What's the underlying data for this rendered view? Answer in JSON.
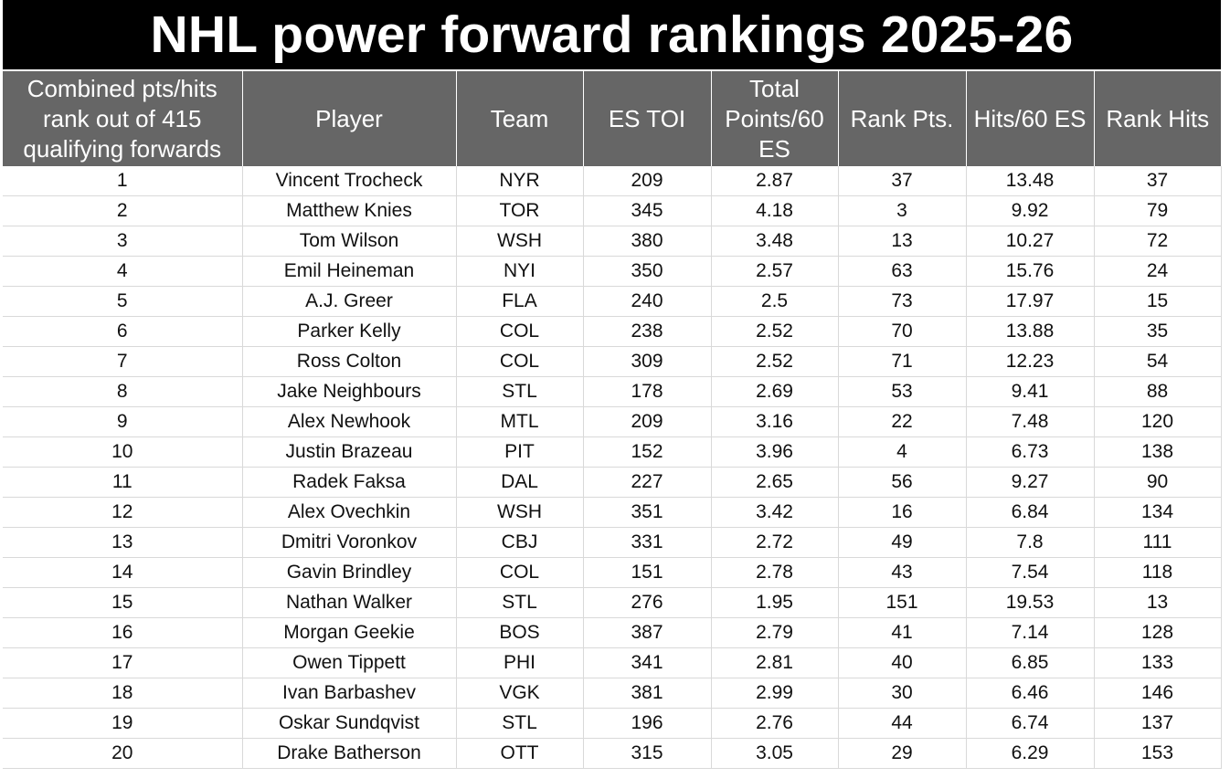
{
  "title": "NHL power forward rankings 2025-26",
  "chart_data": {
    "type": "table",
    "title": "NHL power forward rankings 2025-26",
    "columns": [
      "Combined pts/hits rank out of 415 qualifying forwards",
      "Player",
      "Team",
      "ES TOI",
      "Total Points/60 ES",
      "Rank Pts.",
      "Hits/60 ES",
      "Rank Hits"
    ],
    "rows": [
      [
        "1",
        "Vincent Trocheck",
        "NYR",
        "209",
        "2.87",
        "37",
        "13.48",
        "37"
      ],
      [
        "2",
        "Matthew Knies",
        "TOR",
        "345",
        "4.18",
        "3",
        "9.92",
        "79"
      ],
      [
        "3",
        "Tom Wilson",
        "WSH",
        "380",
        "3.48",
        "13",
        "10.27",
        "72"
      ],
      [
        "4",
        "Emil Heineman",
        "NYI",
        "350",
        "2.57",
        "63",
        "15.76",
        "24"
      ],
      [
        "5",
        "A.J. Greer",
        "FLA",
        "240",
        "2.5",
        "73",
        "17.97",
        "15"
      ],
      [
        "6",
        "Parker Kelly",
        "COL",
        "238",
        "2.52",
        "70",
        "13.88",
        "35"
      ],
      [
        "7",
        "Ross Colton",
        "COL",
        "309",
        "2.52",
        "71",
        "12.23",
        "54"
      ],
      [
        "8",
        "Jake Neighbours",
        "STL",
        "178",
        "2.69",
        "53",
        "9.41",
        "88"
      ],
      [
        "9",
        "Alex Newhook",
        "MTL",
        "209",
        "3.16",
        "22",
        "7.48",
        "120"
      ],
      [
        "10",
        "Justin Brazeau",
        "PIT",
        "152",
        "3.96",
        "4",
        "6.73",
        "138"
      ],
      [
        "11",
        "Radek Faksa",
        "DAL",
        "227",
        "2.65",
        "56",
        "9.27",
        "90"
      ],
      [
        "12",
        "Alex Ovechkin",
        "WSH",
        "351",
        "3.42",
        "16",
        "6.84",
        "134"
      ],
      [
        "13",
        "Dmitri Voronkov",
        "CBJ",
        "331",
        "2.72",
        "49",
        "7.8",
        "111"
      ],
      [
        "14",
        "Gavin Brindley",
        "COL",
        "151",
        "2.78",
        "43",
        "7.54",
        "118"
      ],
      [
        "15",
        "Nathan Walker",
        "STL",
        "276",
        "1.95",
        "151",
        "19.53",
        "13"
      ],
      [
        "16",
        "Morgan Geekie",
        "BOS",
        "387",
        "2.79",
        "41",
        "7.14",
        "128"
      ],
      [
        "17",
        "Owen Tippett",
        "PHI",
        "341",
        "2.81",
        "40",
        "6.85",
        "133"
      ],
      [
        "18",
        "Ivan Barbashev",
        "VGK",
        "381",
        "2.99",
        "30",
        "6.46",
        "146"
      ],
      [
        "19",
        "Oskar Sundqvist",
        "STL",
        "196",
        "2.76",
        "44",
        "6.74",
        "137"
      ],
      [
        "20",
        "Drake Batherson",
        "OTT",
        "315",
        "3.05",
        "29",
        "6.29",
        "153"
      ]
    ]
  }
}
